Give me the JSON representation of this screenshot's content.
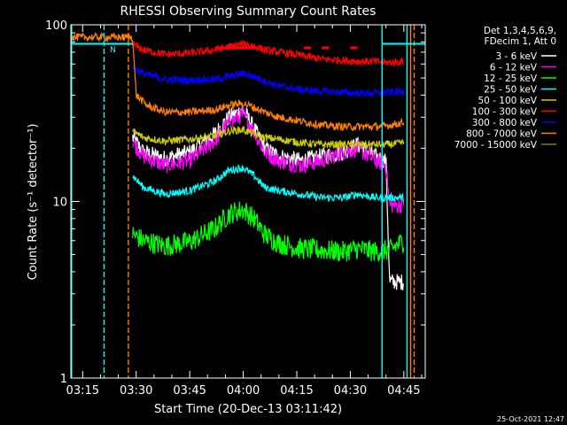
{
  "chart_data": {
    "type": "line",
    "title": "RHESSI Observing Summary Count Rates",
    "xlabel": "Start Time (20-Dec-13 03:11:42)",
    "ylabel": "Count Rate (s⁻¹ detector⁻¹)",
    "yscale": "log",
    "ylim": [
      1,
      100
    ],
    "xlim_minutes": [
      191.7,
      291.0
    ],
    "x_ticks": [
      {
        "m": 195,
        "label": "03:15"
      },
      {
        "m": 210,
        "label": "03:30"
      },
      {
        "m": 225,
        "label": "03:45"
      },
      {
        "m": 240,
        "label": "04:00"
      },
      {
        "m": 255,
        "label": "04:15"
      },
      {
        "m": 270,
        "label": "04:30"
      },
      {
        "m": 285,
        "label": "04:45"
      }
    ],
    "y_ticks": [
      {
        "v": 1,
        "label": "1"
      },
      {
        "v": 10,
        "label": "10"
      },
      {
        "v": 100,
        "label": "100"
      }
    ],
    "legend_header": [
      "Det 1,3,4,5,6,9,",
      "FDecim 1, Att 0"
    ],
    "legend_position": "top-right",
    "timestamp": "25-Oct-2021 12:47",
    "flags": [
      {
        "label": "N",
        "color": "#00ffff"
      }
    ],
    "series": [
      {
        "name": "3 - 6 keV",
        "color": "#ffffff",
        "t": [
          209,
          212,
          218,
          225,
          232,
          236,
          240,
          243,
          246,
          250,
          256,
          262,
          268,
          272,
          277,
          280,
          281,
          284,
          285
        ],
        "v": [
          23,
          19,
          17.5,
          19,
          24,
          30,
          33,
          26,
          20,
          18,
          17,
          18,
          19,
          21,
          18,
          17,
          3.5,
          3.5,
          3.5
        ]
      },
      {
        "name": "6 - 12 keV",
        "color": "#ff00ff",
        "t": [
          209,
          212,
          218,
          225,
          232,
          236,
          240,
          243,
          246,
          250,
          256,
          262,
          268,
          272,
          277,
          280,
          281,
          284,
          285
        ],
        "v": [
          22,
          18,
          16,
          17,
          22,
          28,
          31,
          25,
          19,
          17,
          16,
          17,
          19,
          20,
          17,
          16,
          9.5,
          9.5,
          10
        ]
      },
      {
        "name": "12 - 25 keV",
        "color": "#00ff00",
        "t": [
          209,
          212,
          218,
          225,
          232,
          236,
          240,
          243,
          246,
          250,
          256,
          262,
          268,
          272,
          277,
          281,
          285
        ],
        "v": [
          6.5,
          6,
          5.6,
          5.9,
          7,
          8.5,
          9,
          8,
          6.5,
          5.8,
          5.4,
          5.3,
          5.2,
          5.4,
          5.2,
          5.3,
          6
        ]
      },
      {
        "name": "25 - 50 keV",
        "color": "#00ffff",
        "t": [
          209,
          212,
          218,
          225,
          232,
          236,
          240,
          243,
          246,
          250,
          256,
          262,
          268,
          272,
          277,
          281,
          285
        ],
        "v": [
          14,
          12,
          11,
          11.5,
          13,
          15,
          15.5,
          14,
          12,
          11.5,
          11,
          10.5,
          10.5,
          11,
          10.5,
          10.5,
          10.5
        ]
      },
      {
        "name": "50 - 100 keV",
        "color": "#cccc00",
        "t": [
          209,
          212,
          218,
          225,
          232,
          236,
          240,
          243,
          246,
          250,
          256,
          262,
          268,
          272,
          277,
          281,
          285
        ],
        "v": [
          25,
          23,
          22,
          22.5,
          23.5,
          25,
          25.5,
          24,
          23,
          22.5,
          21.5,
          21,
          21,
          21,
          21,
          21,
          21.5
        ]
      },
      {
        "name": "100 - 300 keV",
        "color": "#ff0000",
        "t": [
          209,
          212,
          218,
          225,
          232,
          236,
          240,
          243,
          246,
          250,
          256,
          262,
          268,
          272,
          277,
          281,
          285
        ],
        "v": [
          78,
          72,
          68,
          69,
          72,
          75,
          78,
          76,
          72,
          70,
          67,
          64,
          63,
          62,
          62,
          61,
          62
        ]
      },
      {
        "name": "300 - 800 keV",
        "color": "#0000ff",
        "t": [
          209,
          212,
          218,
          225,
          232,
          236,
          240,
          243,
          246,
          250,
          256,
          262,
          268,
          272,
          277,
          281,
          285
        ],
        "v": [
          58,
          53,
          49,
          48.5,
          49,
          51,
          53,
          51,
          48,
          45,
          43,
          42,
          41.5,
          41,
          41,
          41.5,
          42
        ]
      },
      {
        "name": "800 - 7000 keV",
        "color": "#ff8000",
        "t": [
          191.7,
          209,
          210,
          213,
          218,
          225,
          232,
          236,
          240,
          243,
          246,
          250,
          256,
          262,
          268,
          272,
          277,
          281,
          285
        ],
        "v": [
          85,
          85,
          40,
          35,
          32,
          32,
          33,
          35,
          36,
          34,
          32,
          30,
          28.5,
          27,
          26.5,
          26.5,
          26.5,
          27,
          28
        ]
      },
      {
        "name": "7000 - 15000 keV",
        "color": "#808000",
        "t": [],
        "v": []
      }
    ]
  }
}
